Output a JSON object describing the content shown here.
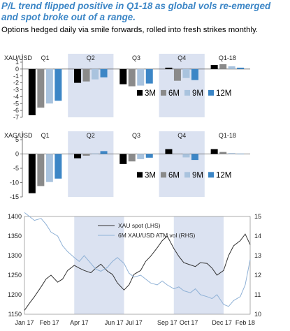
{
  "title": "P/L trend flipped positive in Q1-18 as global vols re-emerged and spot broke out of a range.",
  "subtitle": "Options hedged daily via smile forwards, rolled into fresh strikes monthly.",
  "colors": {
    "3M": "#000000",
    "6M": "#8a8a8a",
    "9M": "#a9c3de",
    "12M": "#3c86c6",
    "shade": "#dbe2f1",
    "spot": "#333333",
    "vol": "#8fb1d6",
    "title": "#3c86c6"
  },
  "chart_data": [
    {
      "type": "bar",
      "panel_label": "XAU/USD",
      "categories": [
        "Q1",
        "Q2",
        "Q3",
        "Q4",
        "Q1-18"
      ],
      "shaded": [
        "Q2",
        "Q4"
      ],
      "ylim": [
        -7,
        1
      ],
      "yticks": [
        1,
        0,
        -1,
        -2,
        -3,
        -4,
        -5,
        -6,
        -7
      ],
      "series": [
        {
          "name": "3M",
          "values": [
            -6.7,
            -2.0,
            -2.2,
            0.2,
            0.6
          ]
        },
        {
          "name": "6M",
          "values": [
            -5.6,
            -1.8,
            -2.5,
            -1.7,
            0.7
          ]
        },
        {
          "name": "9M",
          "values": [
            -5.0,
            -1.5,
            -2.4,
            -1.3,
            0.4
          ]
        },
        {
          "name": "12M",
          "values": [
            -4.6,
            -1.2,
            -2.1,
            -1.6,
            0.2
          ]
        }
      ],
      "legend": [
        "3M",
        "6M",
        "9M",
        "12M"
      ]
    },
    {
      "type": "bar",
      "panel_label": "XAG/USD",
      "categories": [
        "Q1",
        "Q2",
        "Q3",
        "Q4",
        "Q1-18"
      ],
      "shaded": [
        "Q2",
        "Q4"
      ],
      "ylim": [
        -15,
        5
      ],
      "yticks": [
        5,
        0,
        -5,
        -10,
        -15
      ],
      "series": [
        {
          "name": "3M",
          "values": [
            -13.7,
            -1.5,
            -3.5,
            1.7,
            1.7
          ]
        },
        {
          "name": "6M",
          "values": [
            -11.2,
            -0.6,
            -2.6,
            0.1,
            0.7
          ]
        },
        {
          "name": "9M",
          "values": [
            -9.8,
            0.2,
            -1.8,
            -1.2,
            0.3
          ]
        },
        {
          "name": "12M",
          "values": [
            -8.6,
            1.0,
            -1.3,
            -2.1,
            0.1
          ]
        }
      ],
      "legend": [
        "3M",
        "6M",
        "9M",
        "12M"
      ]
    },
    {
      "type": "line",
      "x_tick_labels": [
        "Jan 17",
        "Feb 17",
        "Apr 17",
        "Jun 17",
        "Jul 17",
        "Sep 17",
        "Oct 17",
        "Dec 17",
        "Feb 18"
      ],
      "y_left": {
        "ylim": [
          1150,
          1400
        ],
        "ticks": [
          1400,
          1350,
          1300,
          1250,
          1200,
          1150
        ]
      },
      "y_right": {
        "ylim": [
          10,
          15
        ],
        "ticks": [
          15,
          14,
          13,
          12,
          11,
          10
        ]
      },
      "shaded_months": [
        [
          3,
          6
        ],
        [
          9,
          12
        ]
      ],
      "legend": [
        "XAU spot (LHS)",
        "6M XAU/USD ATM vol (RHS)"
      ],
      "series": [
        {
          "name": "XAU spot (LHS)",
          "axis": "left",
          "x_months": [
            0,
            0.3,
            0.6,
            1,
            1.3,
            1.6,
            2,
            2.3,
            2.6,
            3,
            3.3,
            3.6,
            4,
            4.3,
            4.6,
            5,
            5.3,
            5.6,
            6,
            6.3,
            6.6,
            7,
            7.3,
            7.6,
            8,
            8.3,
            8.6,
            9,
            9.3,
            9.6,
            10,
            10.3,
            10.6,
            11,
            11.3,
            11.6,
            12,
            12.3,
            12.6,
            13,
            13.3,
            13.6
          ],
          "values": [
            1160,
            1178,
            1195,
            1220,
            1240,
            1250,
            1232,
            1240,
            1262,
            1275,
            1268,
            1262,
            1256,
            1268,
            1278,
            1260,
            1252,
            1230,
            1212,
            1225,
            1252,
            1262,
            1285,
            1298,
            1320,
            1338,
            1350,
            1318,
            1298,
            1282,
            1276,
            1272,
            1282,
            1280,
            1268,
            1250,
            1262,
            1300,
            1325,
            1338,
            1355,
            1328
          ]
        },
        {
          "name": "6M XAU/USD ATM vol (RHS)",
          "axis": "right",
          "x_months": [
            0,
            0.3,
            0.6,
            1,
            1.3,
            1.6,
            2,
            2.3,
            2.6,
            3,
            3.3,
            3.6,
            4,
            4.3,
            4.6,
            5,
            5.3,
            5.6,
            6,
            6.3,
            6.6,
            7,
            7.3,
            7.6,
            8,
            8.3,
            8.6,
            9,
            9.3,
            9.6,
            10,
            10.3,
            10.6,
            11,
            11.3,
            11.6,
            12,
            12.3,
            12.6,
            13,
            13.3,
            13.6
          ],
          "values": [
            15.2,
            15.0,
            14.8,
            14.9,
            14.6,
            14.2,
            14.0,
            13.5,
            13.2,
            12.9,
            12.7,
            13.0,
            12.6,
            12.3,
            12.2,
            12.4,
            12.7,
            12.9,
            12.6,
            12.1,
            11.9,
            12.0,
            11.8,
            11.6,
            11.5,
            11.7,
            11.5,
            11.3,
            11.4,
            11.2,
            11.1,
            11.3,
            11.0,
            10.9,
            10.8,
            11.0,
            10.5,
            10.4,
            10.7,
            10.9,
            11.5,
            12.8
          ]
        }
      ]
    }
  ]
}
